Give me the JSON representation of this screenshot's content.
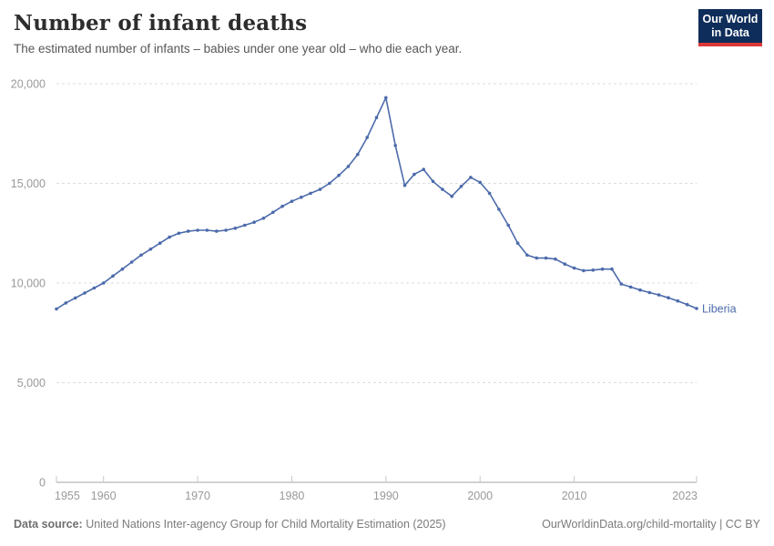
{
  "header": {
    "title": "Number of infant deaths",
    "subtitle": "The estimated number of infants – babies under one year old – who die each year."
  },
  "logo": {
    "line1": "Our World",
    "line2": "in Data"
  },
  "footer": {
    "source_label": "Data source:",
    "source_text": " United Nations Inter-agency Group for Child Mortality Estimation (2025)",
    "link_text": "OurWorldinData.org/child-mortality | CC BY"
  },
  "chart_data": {
    "type": "line",
    "title": "Number of infant deaths",
    "series_name": "Liberia",
    "x": [
      1955,
      1956,
      1957,
      1958,
      1959,
      1960,
      1961,
      1962,
      1963,
      1964,
      1965,
      1966,
      1967,
      1968,
      1969,
      1970,
      1971,
      1972,
      1973,
      1974,
      1975,
      1976,
      1977,
      1978,
      1979,
      1980,
      1981,
      1982,
      1983,
      1984,
      1985,
      1986,
      1987,
      1988,
      1989,
      1990,
      1991,
      1992,
      1993,
      1994,
      1995,
      1996,
      1997,
      1998,
      1999,
      2000,
      2001,
      2002,
      2003,
      2004,
      2005,
      2006,
      2007,
      2008,
      2009,
      2010,
      2011,
      2012,
      2013,
      2014,
      2015,
      2016,
      2017,
      2018,
      2019,
      2020,
      2021,
      2022,
      2023
    ],
    "values": [
      8700,
      9000,
      9250,
      9500,
      9750,
      10000,
      10350,
      10700,
      11050,
      11400,
      11700,
      12000,
      12300,
      12500,
      12600,
      12650,
      12650,
      12600,
      12650,
      12750,
      12900,
      13050,
      13250,
      13550,
      13850,
      14100,
      14300,
      14500,
      14700,
      15000,
      15400,
      15850,
      16450,
      17300,
      18300,
      19300,
      16900,
      14900,
      15450,
      15700,
      15100,
      14700,
      14350,
      14850,
      15300,
      15050,
      14500,
      13700,
      12900,
      12000,
      11400,
      11250,
      11250,
      11200,
      10950,
      10750,
      10620,
      10650,
      10700,
      10700,
      9950,
      9800,
      9650,
      9520,
      9400,
      9260,
      9100,
      8920,
      8720
    ],
    "xlim": [
      1955,
      2023
    ],
    "ylim": [
      0,
      20000
    ],
    "yticks": [
      0,
      5000,
      10000,
      15000,
      20000
    ],
    "ytick_labels": [
      "0",
      "5,000",
      "10,000",
      "15,000",
      "20,000"
    ],
    "xticks": [
      1955,
      1960,
      1970,
      1980,
      1990,
      2000,
      2010,
      2023
    ],
    "xtick_labels": [
      "1955",
      "1960",
      "1970",
      "1980",
      "1990",
      "2000",
      "2010",
      "2023"
    ],
    "grid": "horizontal-dashed",
    "legend_position": "end-of-line",
    "line_color": "#4c6bab",
    "grid_color": "#dddddd",
    "axis_color": "#a5a5a5",
    "tick_label_color": "#999999"
  }
}
